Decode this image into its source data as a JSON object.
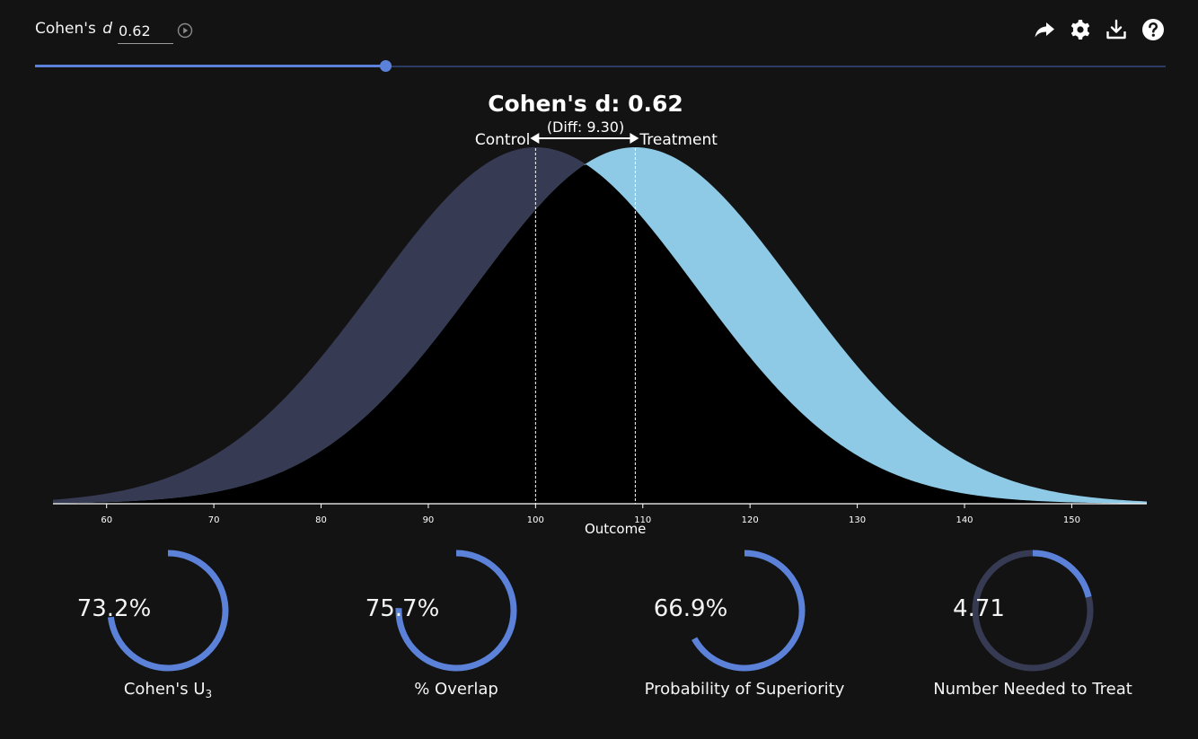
{
  "toolbar": {
    "label_prefix": "Cohen's",
    "label_variable": "d",
    "d_value": "0.62",
    "icons": [
      "play-circle-icon",
      "share-icon",
      "settings-gear-icon",
      "download-icon",
      "help-icon"
    ]
  },
  "slider": {
    "min": 0,
    "max": 2,
    "value": 0.62,
    "fill_fraction": 0.31
  },
  "colors": {
    "background": "#131313",
    "control": "#363a53",
    "treatment": "#8ecae6",
    "overlap": "#000000",
    "accent": "#5b82d8",
    "gauge_track": "#363a53"
  },
  "chart_data": {
    "type": "area",
    "title": "Cohen's d: 0.62",
    "subtitle": "(Diff: 9.30)",
    "xlabel": "Outcome",
    "ylabel": "",
    "xlim": [
      55,
      157
    ],
    "x_ticks": [
      60,
      70,
      80,
      90,
      100,
      110,
      120,
      130,
      140,
      150
    ],
    "grid": false,
    "legend": "none",
    "series": [
      {
        "name": "Control",
        "distribution": "normal",
        "mean": 100,
        "sd": 15
      },
      {
        "name": "Treatment",
        "distribution": "normal",
        "mean": 109.3,
        "sd": 15
      }
    ],
    "annotations": {
      "diff_arrow": [
        100,
        109.3
      ]
    }
  },
  "gauges": [
    {
      "value_text": "73.2%",
      "fraction": 0.732,
      "label_main": "Cohen's U",
      "label_sub": "3",
      "filled_color": "#5b82d8",
      "track_color": "#5b82d8"
    },
    {
      "value_text": "75.7%",
      "fraction": 0.757,
      "label_main": "% Overlap",
      "label_sub": "",
      "filled_color": "#5b82d8",
      "track_color": "#5b82d8"
    },
    {
      "value_text": "66.9%",
      "fraction": 0.669,
      "label_main": "Probability of Superiority",
      "label_sub": "",
      "filled_color": "#5b82d8",
      "track_color": "#5b82d8"
    },
    {
      "value_text": "4.71",
      "fraction": 0.212,
      "label_main": "Number Needed to Treat",
      "label_sub": "",
      "filled_color": "#5b82d8",
      "track_color": "#363a53"
    }
  ]
}
